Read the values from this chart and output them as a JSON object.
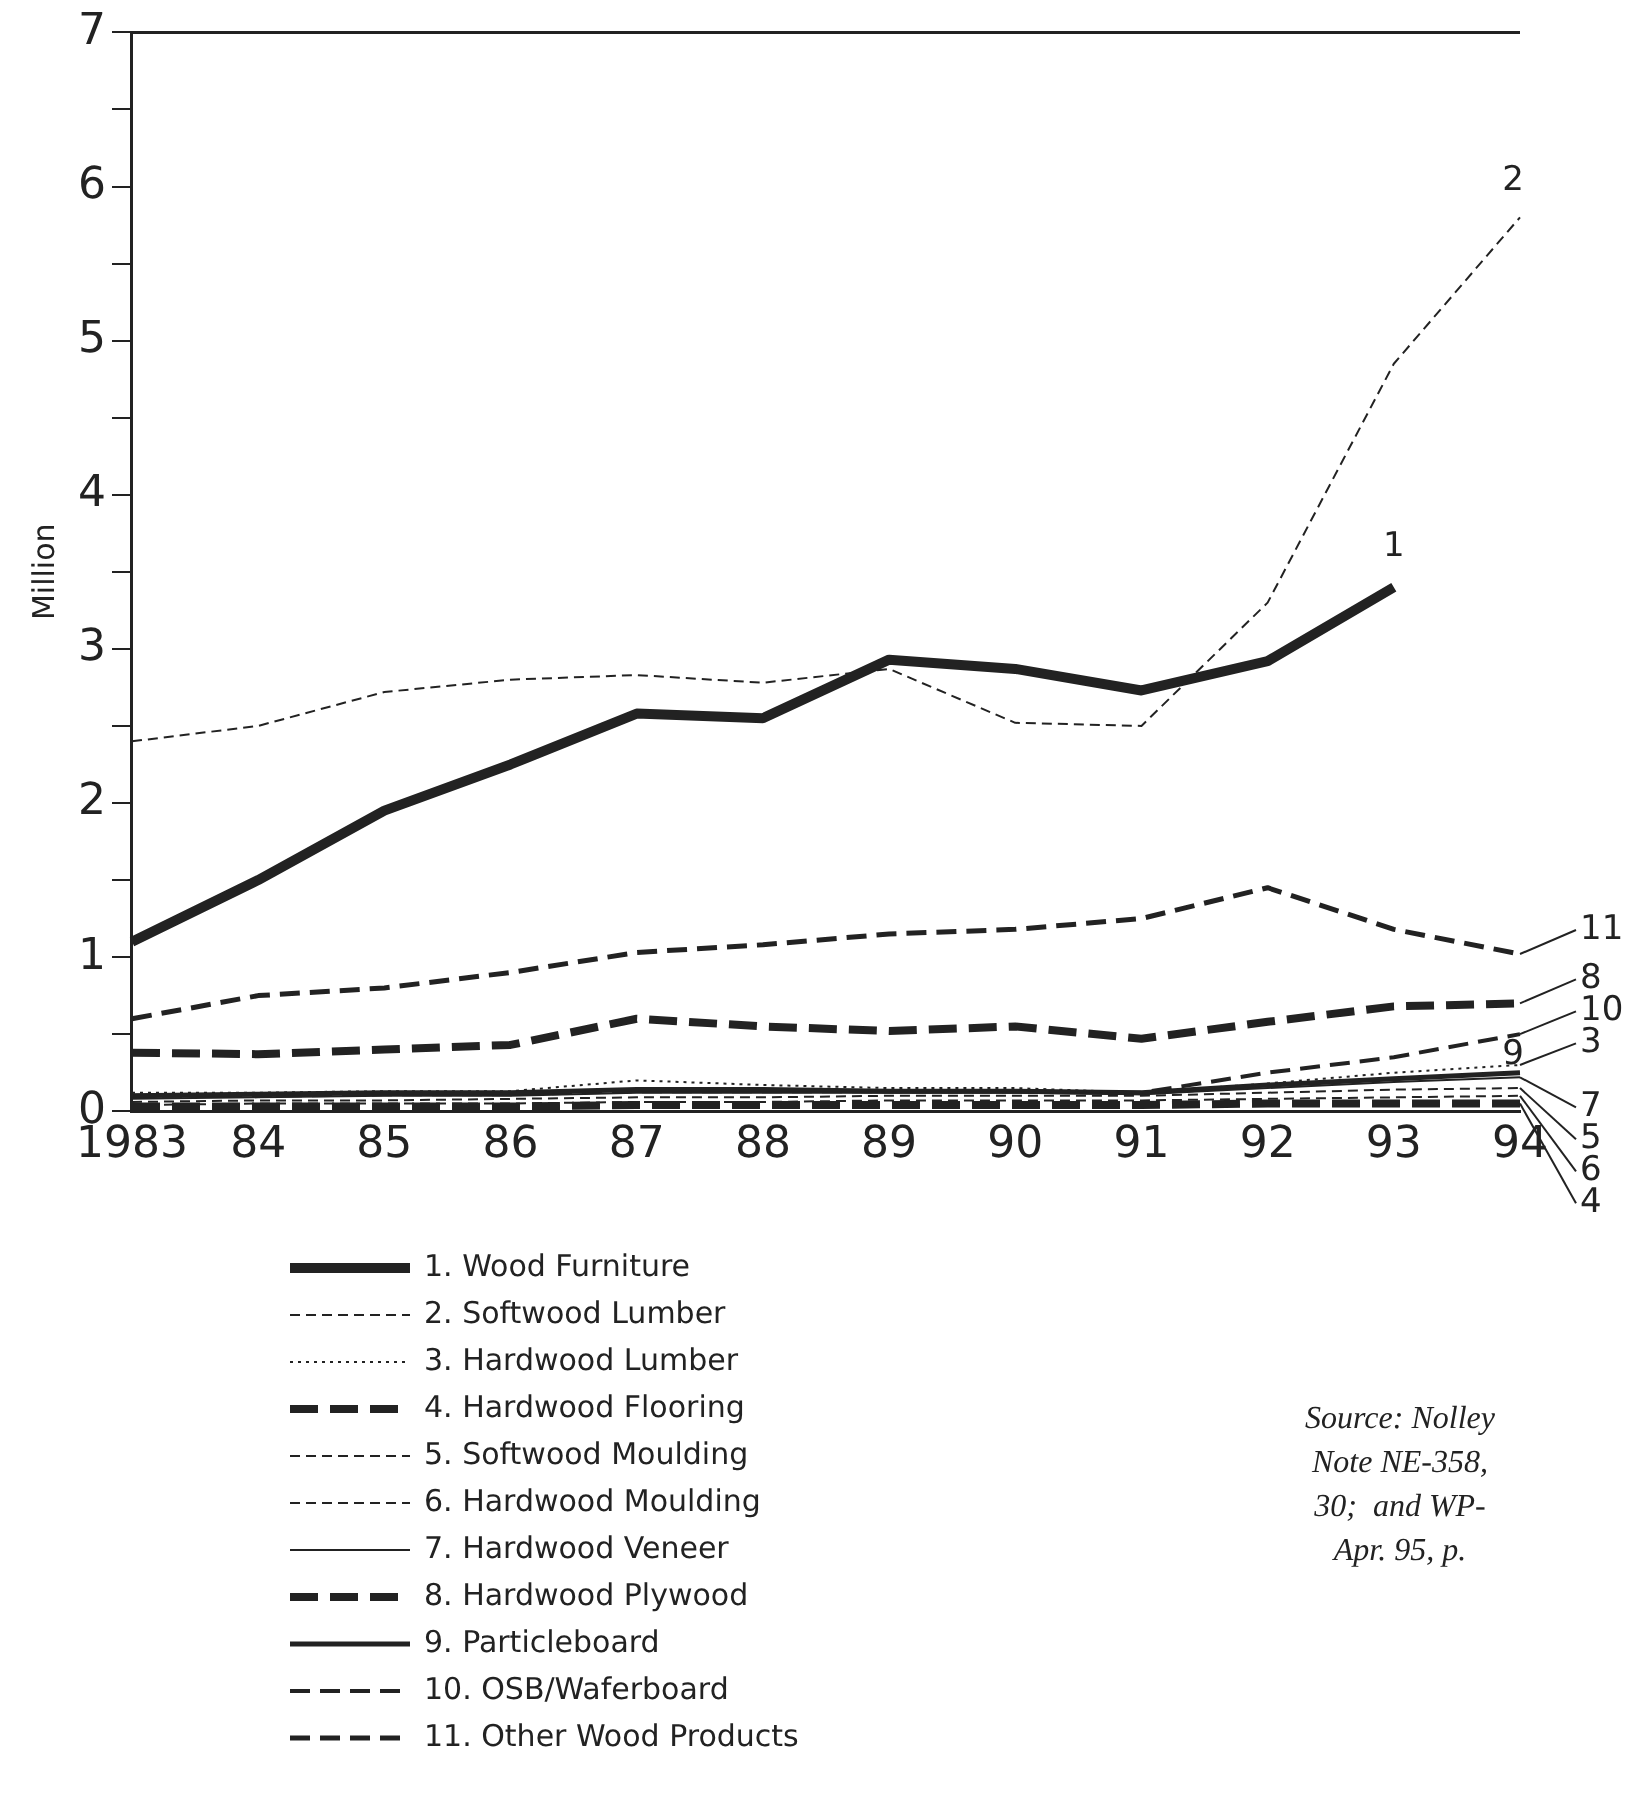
{
  "chart_data": {
    "type": "line",
    "ylabel": "Million",
    "categories": [
      "1983",
      "84",
      "85",
      "86",
      "87",
      "88",
      "89",
      "90",
      "91",
      "92",
      "93",
      "94"
    ],
    "ylim": [
      0,
      7
    ],
    "yticks": [
      0,
      {
        "value": 0.5,
        "label": null
      },
      1,
      {
        "value": 1.5,
        "label": null
      },
      2,
      {
        "value": 2.5,
        "label": null
      },
      3,
      {
        "value": 3.5,
        "label": null
      },
      4,
      {
        "value": 4.5,
        "label": null
      },
      5,
      {
        "value": 5.5,
        "label": null
      },
      6,
      {
        "value": 6.5,
        "label": null
      },
      7
    ],
    "grid": false,
    "legend": "bottom",
    "marker": "none",
    "series": [
      {
        "name": "1. Wood Furniture",
        "color": "#222222",
        "line_style": "solid",
        "values": [
          1.1,
          1.5,
          1.95,
          2.25,
          2.58,
          2.55,
          2.93,
          2.87,
          2.73,
          2.92,
          3.4,
          null
        ]
      },
      {
        "name": "2. Softwood Lumber",
        "color": "#222222",
        "line_style": "dashed",
        "values": [
          2.4,
          2.5,
          2.72,
          2.8,
          2.83,
          2.78,
          2.87,
          2.52,
          2.5,
          3.3,
          4.85,
          5.8
        ]
      },
      {
        "name": "3. Hardwood Lumber",
        "color": "#222222",
        "line_style": "dotted",
        "values": [
          0.12,
          0.12,
          0.13,
          0.13,
          0.2,
          0.17,
          0.15,
          0.15,
          0.12,
          0.18,
          0.25,
          0.3
        ]
      },
      {
        "name": "4. Hardwood Flooring",
        "color": "#222222",
        "line_style": "dashed",
        "values": [
          0.03,
          0.03,
          0.03,
          0.03,
          0.04,
          0.04,
          0.04,
          0.04,
          0.04,
          0.05,
          0.05,
          0.05
        ]
      },
      {
        "name": "5. Softwood Moulding",
        "color": "#222222",
        "line_style": "dashed",
        "values": [
          0.06,
          0.07,
          0.07,
          0.08,
          0.09,
          0.09,
          0.1,
          0.1,
          0.1,
          0.12,
          0.14,
          0.15
        ]
      },
      {
        "name": "6. Hardwood Moulding",
        "color": "#222222",
        "line_style": "dashed",
        "values": [
          0.04,
          0.05,
          0.05,
          0.05,
          0.06,
          0.06,
          0.07,
          0.07,
          0.07,
          0.08,
          0.09,
          0.1
        ]
      },
      {
        "name": "7. Hardwood Veneer",
        "color": "#222222",
        "line_style": "solid",
        "values": [
          0.08,
          0.09,
          0.1,
          0.1,
          0.12,
          0.12,
          0.12,
          0.12,
          0.11,
          0.15,
          0.19,
          0.22
        ]
      },
      {
        "name": "8. Hardwood Plywood",
        "color": "#222222",
        "line_style": "dashed",
        "values": [
          0.38,
          0.37,
          0.4,
          0.43,
          0.6,
          0.55,
          0.52,
          0.55,
          0.47,
          0.58,
          0.68,
          0.7
        ]
      },
      {
        "name": "9. Particleboard",
        "color": "#222222",
        "line_style": "solid",
        "values": [
          0.1,
          0.11,
          0.12,
          0.12,
          0.14,
          0.14,
          0.13,
          0.13,
          0.12,
          0.17,
          0.21,
          0.25
        ]
      },
      {
        "name": "10. OSB/Waferboard",
        "color": "#222222",
        "line_style": "dashed",
        "values": [
          0.1,
          0.1,
          0.11,
          0.11,
          0.13,
          0.13,
          0.13,
          0.13,
          0.12,
          0.25,
          0.35,
          0.5
        ]
      },
      {
        "name": "11. Other Wood Products",
        "color": "#222222",
        "line_style": "dashed",
        "values": [
          0.6,
          0.75,
          0.8,
          0.9,
          1.03,
          1.08,
          1.15,
          1.18,
          1.25,
          1.45,
          1.18,
          1.02
        ]
      }
    ],
    "annotations": [
      {
        "text": "1",
        "x": "93",
        "y": 3.4
      },
      {
        "text": "2",
        "x": "94",
        "y": 5.8
      },
      {
        "text": "11",
        "x": "94",
        "y": 1.02
      },
      {
        "text": "8",
        "x": "94",
        "y": 0.7
      },
      {
        "text": "10",
        "x": "94",
        "y": 0.5
      },
      {
        "text": "3",
        "x": "94",
        "y": 0.3
      },
      {
        "text": "9",
        "x": "94",
        "y": 0.25
      },
      {
        "text": "7",
        "x": "94",
        "y": 0.22
      },
      {
        "text": "5",
        "x": "94",
        "y": 0.15
      },
      {
        "text": "6",
        "x": "94",
        "y": 0.1
      },
      {
        "text": "4",
        "x": "94",
        "y": 0.05
      },
      "Source: Nolley\nNote NE-358,\n30;  and WP-\nApr. 95, p."
    ]
  }
}
